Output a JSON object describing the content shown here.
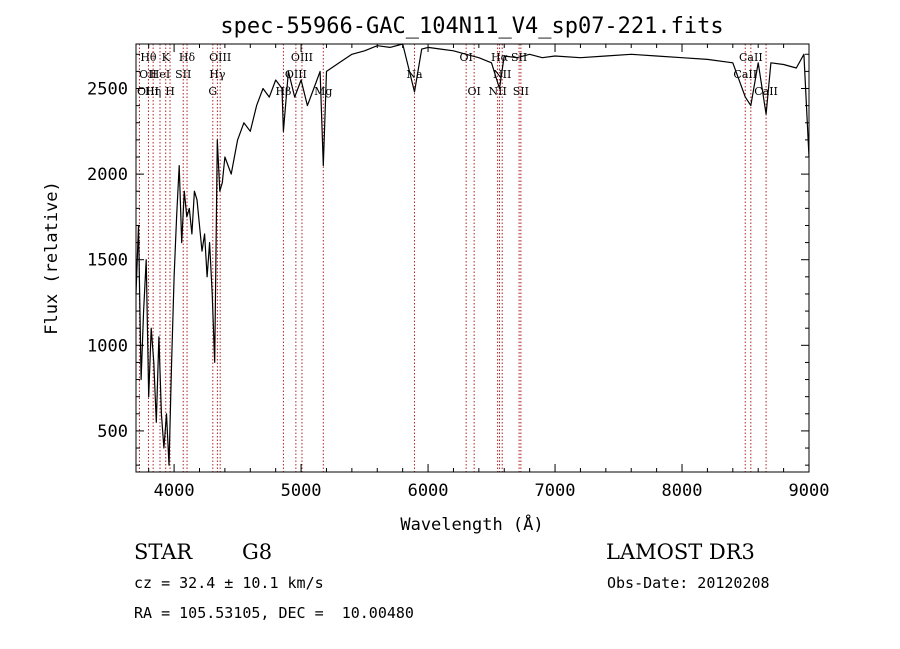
{
  "chart_data": {
    "type": "line",
    "title": "spec-55966-GAC_104N11_V4_sp07-221.fits",
    "xlabel": "Wavelength (Å)",
    "ylabel": "Flux (relative)",
    "xlim": [
      3700,
      9000
    ],
    "ylim": [
      260,
      2760
    ],
    "x_ticks": [
      4000,
      5000,
      6000,
      7000,
      8000,
      9000
    ],
    "y_ticks": [
      500,
      1000,
      1500,
      2000,
      2500
    ],
    "series": [
      {
        "name": "spectrum",
        "x": [
          3700,
          3720,
          3740,
          3760,
          3780,
          3800,
          3820,
          3840,
          3860,
          3880,
          3900,
          3920,
          3940,
          3960,
          3980,
          4000,
          4020,
          4040,
          4060,
          4080,
          4100,
          4120,
          4140,
          4160,
          4180,
          4200,
          4220,
          4240,
          4260,
          4280,
          4300,
          4320,
          4340,
          4360,
          4380,
          4400,
          4450,
          4500,
          4550,
          4600,
          4650,
          4700,
          4750,
          4800,
          4850,
          4861,
          4900,
          4950,
          5000,
          5050,
          5100,
          5150,
          5175,
          5200,
          5300,
          5400,
          5500,
          5600,
          5700,
          5800,
          5893,
          5950,
          6000,
          6100,
          6200,
          6300,
          6400,
          6500,
          6563,
          6600,
          6700,
          6800,
          6900,
          7000,
          7200,
          7400,
          7600,
          7800,
          8000,
          8200,
          8400,
          8498,
          8542,
          8600,
          8662,
          8700,
          8800,
          8900,
          8960,
          9000
        ],
        "y": [
          1300,
          1700,
          800,
          1200,
          1500,
          700,
          1100,
          900,
          550,
          1050,
          600,
          400,
          600,
          300,
          900,
          1400,
          1750,
          2050,
          1600,
          1900,
          1750,
          1800,
          1650,
          1900,
          1850,
          1700,
          1550,
          1650,
          1400,
          1600,
          1300,
          900,
          2200,
          1900,
          1950,
          2100,
          2000,
          2200,
          2300,
          2250,
          2400,
          2500,
          2450,
          2550,
          2500,
          2250,
          2600,
          2450,
          2550,
          2400,
          2500,
          2600,
          2050,
          2600,
          2650,
          2700,
          2720,
          2750,
          2740,
          2760,
          2480,
          2730,
          2740,
          2730,
          2720,
          2700,
          2680,
          2650,
          2500,
          2690,
          2680,
          2700,
          2680,
          2690,
          2680,
          2690,
          2700,
          2690,
          2680,
          2670,
          2650,
          2450,
          2400,
          2650,
          2350,
          2650,
          2640,
          2620,
          2700,
          2100
        ]
      }
    ],
    "spectral_lines": [
      {
        "label": "Hθ",
        "x": 3798,
        "row": 0
      },
      {
        "label": "OII",
        "x": 3727,
        "row": 1
      },
      {
        "label": "OIII",
        "x": 3727,
        "row": 2
      },
      {
        "label": "K",
        "x": 3934,
        "row": 0
      },
      {
        "label": "HeI",
        "x": 3889,
        "row": 1
      },
      {
        "label": "Hη",
        "x": 3835,
        "row": 2
      },
      {
        "label": "SII",
        "x": 4072,
        "row": 1
      },
      {
        "label": "H",
        "x": 3968,
        "row": 2
      },
      {
        "label": "Hδ",
        "x": 4102,
        "row": 0
      },
      {
        "label": "OIII",
        "x": 4363,
        "row": 0
      },
      {
        "label": "Hγ",
        "x": 4341,
        "row": 1
      },
      {
        "label": "G",
        "x": 4305,
        "row": 2
      },
      {
        "label": "OIII",
        "x": 5007,
        "row": 0
      },
      {
        "label": "OIII",
        "x": 4959,
        "row": 1
      },
      {
        "label": "Hβ",
        "x": 4861,
        "row": 2
      },
      {
        "label": "Mg",
        "x": 5175,
        "row": 2
      },
      {
        "label": "Na",
        "x": 5893,
        "row": 1
      },
      {
        "label": "OI",
        "x": 6300,
        "row": 0
      },
      {
        "label": "OI",
        "x": 6363,
        "row": 2
      },
      {
        "label": "Hα",
        "x": 6563,
        "row": 0
      },
      {
        "label": "SII",
        "x": 6717,
        "row": 0
      },
      {
        "label": "NII",
        "x": 6584,
        "row": 1
      },
      {
        "label": "NII",
        "x": 6548,
        "row": 2
      },
      {
        "label": "SII",
        "x": 6731,
        "row": 2
      },
      {
        "label": "CaII",
        "x": 8542,
        "row": 0
      },
      {
        "label": "CaII",
        "x": 8498,
        "row": 1
      },
      {
        "label": "CaII",
        "x": 8662,
        "row": 2
      }
    ],
    "line_x": [
      3727,
      3798,
      3835,
      3889,
      3934,
      3968,
      4072,
      4102,
      4305,
      4341,
      4363,
      4861,
      4959,
      5007,
      5175,
      5893,
      6300,
      6363,
      6548,
      6563,
      6584,
      6717,
      6731,
      8498,
      8542,
      8662
    ]
  },
  "info": {
    "class": "STAR",
    "subclass": "G8",
    "survey": "LAMOST DR3",
    "cz": "cz = 32.4 ± 10.1 km/s",
    "obs_date": "Obs-Date: 20120208",
    "radec": "RA = 105.53105, DEC =  10.00480"
  },
  "colors": {
    "line_marker": "#b22222",
    "spectrum": "#000000"
  }
}
